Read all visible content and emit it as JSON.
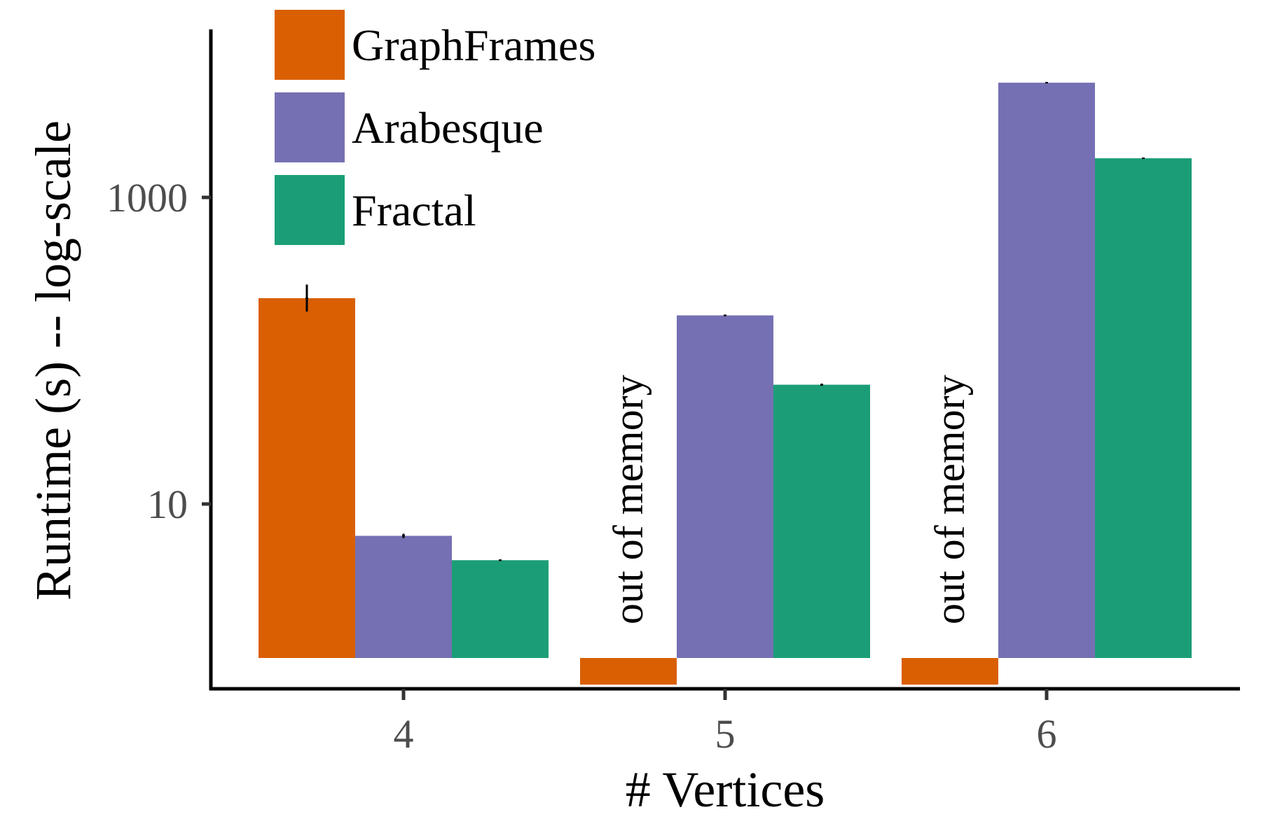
{
  "chart_data": {
    "type": "bar",
    "xlabel": "# Vertices",
    "ylabel": "Runtime (s) -- log-scale",
    "scale": "log",
    "ylim": [
      1,
      10000
    ],
    "yticks": [
      10,
      1000
    ],
    "ytick_labels": [
      "10",
      "1000"
    ],
    "categories": [
      "4",
      "5",
      "6"
    ],
    "series": [
      {
        "name": "GraphFrames",
        "color": "#d95f02",
        "values": [
          220,
          null,
          null
        ],
        "errors": [
          [
            180,
            270
          ],
          null,
          null
        ]
      },
      {
        "name": "Arabesque",
        "color": "#7570b3",
        "values": [
          6.2,
          170,
          5600
        ],
        "errors": [
          [
            6.0,
            6.4
          ],
          [
            168,
            172
          ],
          [
            5550,
            5650
          ]
        ]
      },
      {
        "name": "Fractal",
        "color": "#1b9e77",
        "values": [
          4.3,
          60,
          1800
        ],
        "errors": [
          [
            4.25,
            4.35
          ],
          [
            59,
            61
          ],
          [
            1790,
            1810
          ]
        ]
      }
    ],
    "annotations": [
      {
        "category": "5",
        "series": "GraphFrames",
        "text": "out of memory"
      },
      {
        "category": "6",
        "series": "GraphFrames",
        "text": "out of memory"
      }
    ],
    "legend": {
      "position": "top-left"
    },
    "grid": false
  }
}
